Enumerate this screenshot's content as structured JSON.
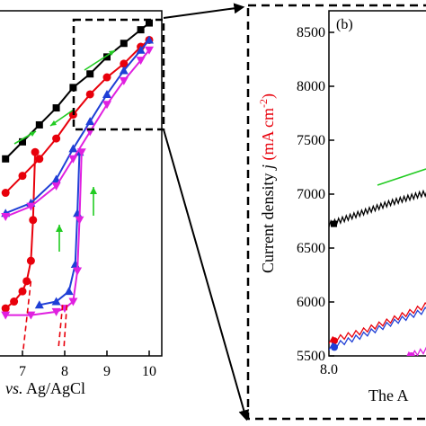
{
  "chart_data": [
    {
      "panel": "a",
      "type": "line",
      "xlabel_parts": [
        {
          "text": "vs.",
          "italic": true
        },
        {
          "text": " Ag/AgCl",
          "italic": false
        }
      ],
      "xticks": [
        7,
        8,
        9,
        10
      ],
      "xlim": [
        6.6,
        10.35
      ],
      "ylim": [
        0,
        1
      ],
      "grid": false,
      "series": [
        {
          "color": "#000000",
          "marker": "square",
          "x": [
            6.6,
            7.0,
            7.4,
            7.8,
            8.2,
            8.6,
            9.0,
            9.4,
            9.8,
            10.0
          ],
          "y": [
            0.58,
            0.63,
            0.68,
            0.73,
            0.79,
            0.83,
            0.88,
            0.92,
            0.96,
            0.98
          ]
        },
        {
          "color": "#e8000b",
          "marker": "circle",
          "x": [
            6.6,
            7.0,
            7.4,
            7.8,
            8.2,
            8.6,
            9.0,
            9.4,
            9.8,
            10.0
          ],
          "y": [
            0.48,
            0.53,
            0.58,
            0.64,
            0.71,
            0.77,
            0.82,
            0.86,
            0.91,
            0.93
          ]
        },
        {
          "color": "#e8000b",
          "marker": "circle",
          "x": [
            6.6,
            6.8,
            7.0,
            7.1,
            7.2,
            7.25,
            7.3
          ],
          "y": [
            0.14,
            0.16,
            0.19,
            0.22,
            0.28,
            0.4,
            0.6
          ]
        },
        {
          "color": "#1f3fd6",
          "marker": "triangle-up",
          "x": [
            6.6,
            7.2,
            7.8,
            8.2,
            8.6,
            9.0,
            9.4,
            9.8,
            10.0
          ],
          "y": [
            0.42,
            0.45,
            0.52,
            0.61,
            0.69,
            0.77,
            0.84,
            0.9,
            0.93
          ]
        },
        {
          "color": "#1f3fd6",
          "marker": "triangle-up",
          "x": [
            7.4,
            7.8,
            8.1,
            8.25,
            8.3,
            8.35
          ],
          "y": [
            0.15,
            0.16,
            0.19,
            0.27,
            0.42,
            0.6
          ]
        },
        {
          "color": "#e020e0",
          "marker": "triangle-down",
          "x": [
            6.6,
            7.2,
            7.8,
            8.2,
            8.6,
            9.0,
            9.4,
            9.8,
            10.0
          ],
          "y": [
            0.41,
            0.44,
            0.5,
            0.58,
            0.66,
            0.74,
            0.81,
            0.87,
            0.9
          ]
        },
        {
          "color": "#e020e0",
          "marker": "triangle-down",
          "x": [
            6.6,
            7.2,
            7.8,
            8.0,
            8.2,
            8.3,
            8.35,
            8.4
          ],
          "y": [
            0.12,
            0.12,
            0.13,
            0.14,
            0.16,
            0.25,
            0.4,
            0.6
          ]
        }
      ],
      "dashed_extrapolations": [
        {
          "color": "#e8000b",
          "x": [
            7.2,
            7.02
          ],
          "y": [
            0.22,
            0.02
          ]
        },
        {
          "color": "#e8000b",
          "x": [
            7.95,
            7.85
          ],
          "y": [
            0.15,
            0.02
          ]
        },
        {
          "color": "#e8000b",
          "x": [
            8.05,
            7.98
          ],
          "y": [
            0.15,
            0.02
          ]
        }
      ]
    },
    {
      "panel": "b",
      "type": "line",
      "panel_label": "(b)",
      "ylabel_parts": [
        {
          "text": "Current density ",
          "italic": false,
          "color": "#000000"
        },
        {
          "text": "j",
          "italic": true,
          "color": "#000000"
        },
        {
          "text": " (mA cm",
          "italic": false,
          "color": "#e8000b"
        },
        {
          "text": "-2",
          "italic": false,
          "color": "#e8000b",
          "sup": true
        },
        {
          "text": ")",
          "italic": false,
          "color": "#e8000b"
        }
      ],
      "xlabel": "The A",
      "xticks": [
        8.0
      ],
      "xlim": [
        8.0,
        8.35
      ],
      "yticks": [
        5500,
        6000,
        6500,
        7000,
        7500,
        8000,
        8500
      ],
      "ylim": [
        5500,
        8700
      ],
      "grid": false,
      "series": [
        {
          "color": "#000000",
          "x": [
            8.0,
            8.02,
            8.04,
            8.06,
            8.08,
            8.1,
            8.12,
            8.14,
            8.16,
            8.18,
            8.2
          ],
          "y": [
            6720,
            6770,
            6820,
            6870,
            6920,
            6960,
            7000,
            7030,
            7060,
            7080,
            7120
          ]
        },
        {
          "color": "#e8000b",
          "x": [
            8.0,
            8.04,
            8.08,
            8.12,
            8.16,
            8.2
          ],
          "y": [
            5640,
            5720,
            5830,
            5950,
            6080,
            6200
          ]
        },
        {
          "color": "#1f3fd6",
          "x": [
            8.0,
            8.04,
            8.08,
            8.12,
            8.16,
            8.2
          ],
          "y": [
            5580,
            5680,
            5800,
            5910,
            6020,
            6120
          ]
        },
        {
          "color": "#e020e0",
          "x": [
            8.1,
            8.13,
            8.16,
            8.2
          ],
          "y": [
            5500,
            5560,
            5620,
            5700
          ]
        }
      ]
    }
  ]
}
